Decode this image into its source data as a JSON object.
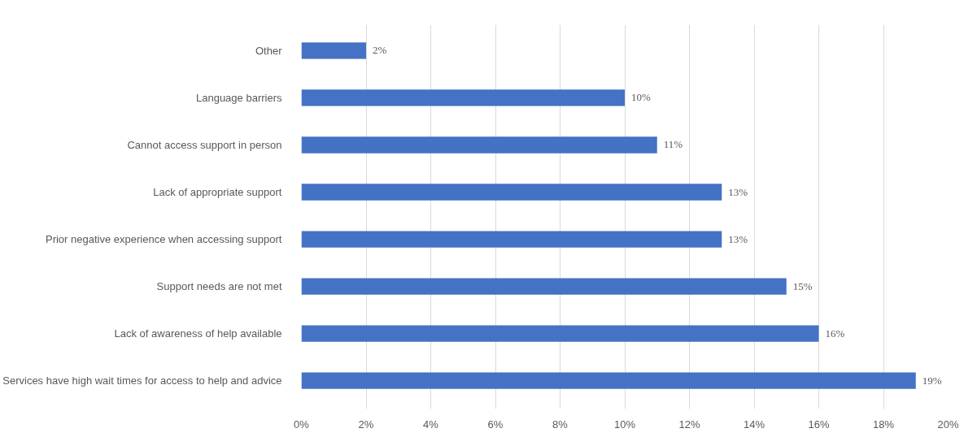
{
  "chart_data": {
    "type": "bar",
    "orientation": "horizontal",
    "categories": [
      "Other",
      "Language barriers",
      "Cannot access support in person",
      "Lack of appropriate support",
      "Prior negative experience when accessing support",
      "Support needs are not met",
      "Lack of awareness of help available",
      "Services have high wait times for access to help and advice"
    ],
    "values": [
      2,
      10,
      11,
      13,
      13,
      15,
      16,
      19
    ],
    "value_labels": [
      "2%",
      "10%",
      "11%",
      "13%",
      "13%",
      "15%",
      "16%",
      "19%"
    ],
    "color": "#4472c4",
    "xlim": [
      0,
      20
    ],
    "xticks": [
      {
        "value": 0,
        "label": "0%"
      },
      {
        "value": 2,
        "label": "2%"
      },
      {
        "value": 4,
        "label": "4%"
      },
      {
        "value": 6,
        "label": "6%"
      },
      {
        "value": 8,
        "label": "8%"
      },
      {
        "value": 10,
        "label": "10%"
      },
      {
        "value": 12,
        "label": "12%"
      },
      {
        "value": 14,
        "label": "14%"
      },
      {
        "value": 16,
        "label": "16%"
      },
      {
        "value": 18,
        "label": "18%"
      },
      {
        "value": 20,
        "label": "20%"
      }
    ],
    "grid": "x"
  }
}
